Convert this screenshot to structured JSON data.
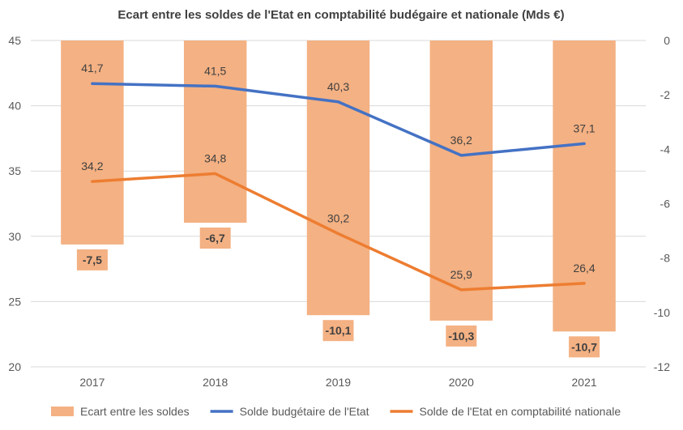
{
  "chart_data": {
    "type": "bar",
    "title": "Ecart entre les soldes de l'Etat en comptabilité budégaire et nationale (Mds €)",
    "categories": [
      "2017",
      "2018",
      "2019",
      "2020",
      "2021"
    ],
    "y_left": {
      "min": 20,
      "max": 45,
      "ticks": [
        "20",
        "25",
        "30",
        "35",
        "40",
        "45"
      ]
    },
    "y_right": {
      "min": -12,
      "max": 0,
      "ticks": [
        "0",
        "-2",
        "-4",
        "-6",
        "-8",
        "-10",
        "-12"
      ]
    },
    "grid": true,
    "legend_position": "bottom",
    "series": [
      {
        "name": "Ecart entre les soldes",
        "kind": "bar",
        "axis": "right",
        "color": "#F4B183",
        "values": [
          -7.5,
          -6.7,
          -10.1,
          -10.3,
          -10.7
        ],
        "labels": [
          "-7,5",
          "-6,7",
          "-10,1",
          "-10,3",
          "-10,7"
        ]
      },
      {
        "name": "Solde budgétaire de l'Etat",
        "kind": "line",
        "axis": "left",
        "color": "#4472C4",
        "values": [
          41.7,
          41.5,
          40.3,
          36.2,
          37.1
        ],
        "labels": [
          "41,7",
          "41,5",
          "40,3",
          "36,2",
          "37,1"
        ]
      },
      {
        "name": "Solde de l'Etat en comptabilité nationale",
        "kind": "line",
        "axis": "left",
        "color": "#ED7D31",
        "values": [
          34.2,
          34.8,
          30.2,
          25.9,
          26.4
        ],
        "labels": [
          "34,2",
          "34,8",
          "30,2",
          "25,9",
          "26,4"
        ]
      }
    ]
  }
}
